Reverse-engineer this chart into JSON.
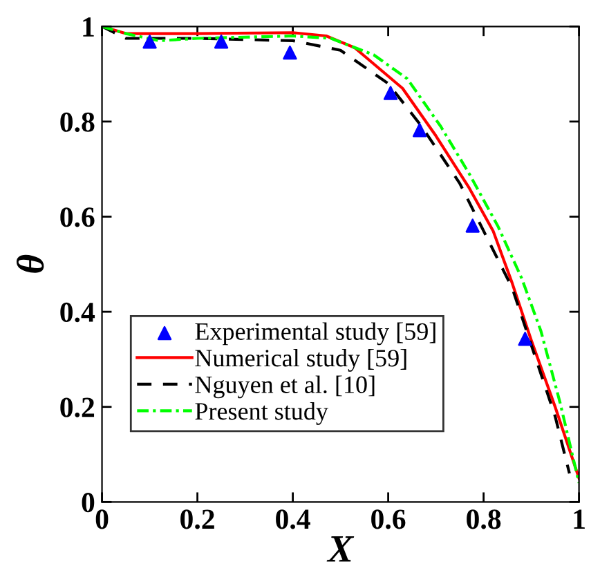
{
  "chart_data": {
    "type": "line",
    "xlabel": "X",
    "ylabel": "θ",
    "xlim": [
      0,
      1
    ],
    "ylim": [
      0,
      1
    ],
    "xticks": [
      0,
      0.2,
      0.4,
      0.6,
      0.8,
      1
    ],
    "yticks": [
      0,
      0.2,
      0.4,
      0.6,
      0.8,
      1
    ],
    "grid": false,
    "legend": "left",
    "series": [
      {
        "name": "Experimental study [59]",
        "type": "scatter",
        "marker": "triangle",
        "color": "#0000ff",
        "x": [
          0.1,
          0.25,
          0.394,
          0.605,
          0.666,
          0.777,
          0.887
        ],
        "values": [
          0.968,
          0.968,
          0.945,
          0.86,
          0.782,
          0.581,
          0.343
        ]
      },
      {
        "name": "Numerical study [59]",
        "line_style": "solid",
        "color": "#ff0000",
        "x": [
          0,
          0.05,
          0.2,
          0.4,
          0.47,
          0.53,
          0.63,
          0.7,
          0.77,
          0.82,
          0.86,
          0.9,
          0.95,
          1.0
        ],
        "values": [
          1,
          0.985,
          0.985,
          0.987,
          0.98,
          0.955,
          0.87,
          0.77,
          0.66,
          0.57,
          0.46,
          0.34,
          0.2,
          0.05
        ]
      },
      {
        "name": "Nguyen et al. [10]",
        "line_style": "dashed",
        "color": "#000000",
        "x": [
          0,
          0.05,
          0.2,
          0.4,
          0.5,
          0.6,
          0.67,
          0.75,
          0.8,
          0.86,
          0.9,
          0.95,
          0.98
        ],
        "values": [
          1,
          0.975,
          0.975,
          0.97,
          0.95,
          0.88,
          0.79,
          0.67,
          0.57,
          0.45,
          0.33,
          0.18,
          0.06
        ]
      },
      {
        "name": "Present study",
        "line_style": "dashdot",
        "color": "#00ff00",
        "x": [
          0,
          0.05,
          0.12,
          0.2,
          0.4,
          0.48,
          0.57,
          0.64,
          0.71,
          0.77,
          0.83,
          0.88,
          0.92,
          0.96,
          1.0
        ],
        "values": [
          1,
          0.985,
          0.97,
          0.975,
          0.98,
          0.975,
          0.94,
          0.89,
          0.79,
          0.69,
          0.58,
          0.47,
          0.36,
          0.21,
          0.04
        ]
      }
    ]
  }
}
